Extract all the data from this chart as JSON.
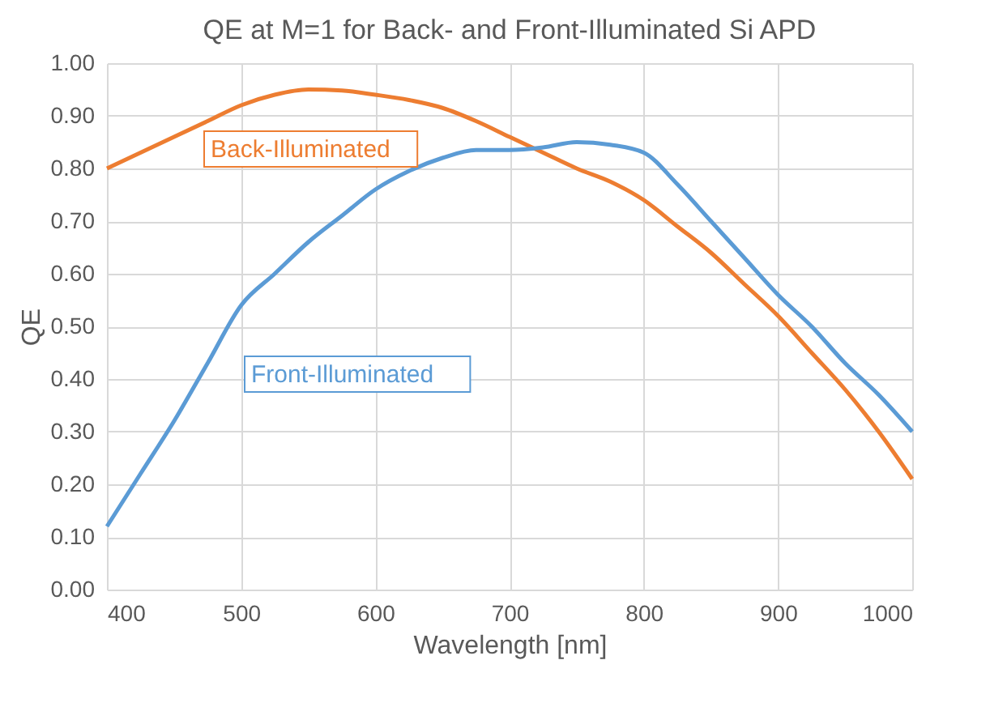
{
  "chart_data": {
    "type": "line",
    "title": "QE at M=1 for Back- and Front-Illuminated Si APD",
    "xlabel": "Wavelength [nm]",
    "ylabel": "QE",
    "x": [
      400,
      425,
      450,
      475,
      500,
      525,
      550,
      575,
      600,
      625,
      650,
      675,
      700,
      725,
      750,
      775,
      800,
      825,
      850,
      875,
      900,
      925,
      950,
      975,
      1000
    ],
    "series": [
      {
        "name": "Back-Illuminated",
        "color": "#ed7d31",
        "values": [
          0.8,
          0.83,
          0.86,
          0.89,
          0.92,
          0.94,
          0.95,
          0.948,
          0.94,
          0.93,
          0.915,
          0.89,
          0.86,
          0.83,
          0.8,
          0.775,
          0.74,
          0.69,
          0.64,
          0.58,
          0.52,
          0.45,
          0.38,
          0.3,
          0.21
        ]
      },
      {
        "name": "Front-Illuminated",
        "color": "#5b9bd5",
        "values": [
          0.12,
          0.22,
          0.32,
          0.43,
          0.54,
          0.6,
          0.66,
          0.71,
          0.76,
          0.795,
          0.82,
          0.835,
          0.835,
          0.84,
          0.85,
          0.845,
          0.83,
          0.77,
          0.7,
          0.63,
          0.56,
          0.5,
          0.43,
          0.37,
          0.3
        ]
      }
    ],
    "xlim": [
      400,
      1000
    ],
    "xticks": [
      400,
      500,
      600,
      700,
      800,
      900,
      {
        "value": 1000,
        "label": "1000"
      }
    ],
    "ylim": [
      0,
      1
    ],
    "yticks": [
      {
        "value": 0,
        "label": "0.00"
      },
      {
        "value": 0.1,
        "label": "0.10"
      },
      {
        "value": 0.2,
        "label": "0.20"
      },
      {
        "value": 0.3,
        "label": "0.30"
      },
      {
        "value": 0.4,
        "label": "0.40"
      },
      {
        "value": 0.5,
        "label": "0.50"
      },
      {
        "value": 0.6,
        "label": "0.60"
      },
      {
        "value": 0.7,
        "label": "0.70"
      },
      {
        "value": 0.8,
        "label": "0.80"
      },
      {
        "value": 0.9,
        "label": "0.90"
      },
      {
        "value": 1,
        "label": "1.00"
      }
    ],
    "grid": true,
    "marker": "none",
    "line_style": "solid"
  }
}
